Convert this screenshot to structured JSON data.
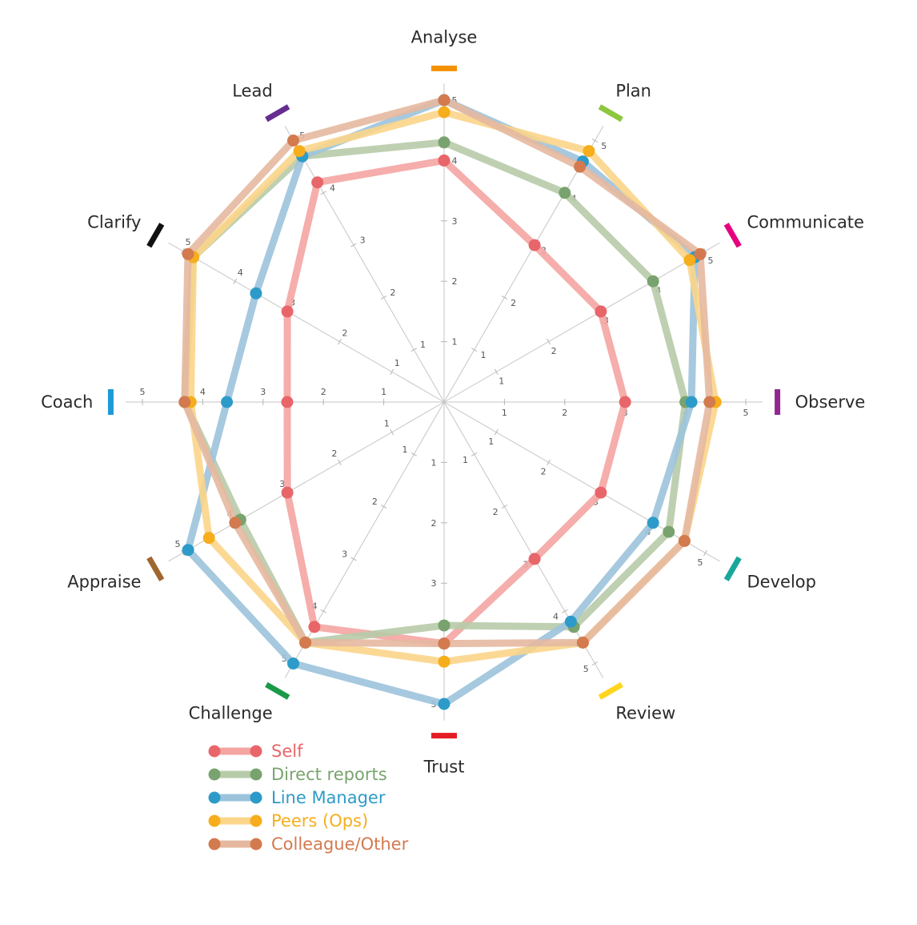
{
  "chart_data": {
    "type": "radar",
    "title": "",
    "axes": [
      {
        "name": "Analyse",
        "color": "#f39200"
      },
      {
        "name": "Plan",
        "color": "#8dc63f"
      },
      {
        "name": "Communicate",
        "color": "#e6007e"
      },
      {
        "name": "Observe",
        "color": "#92278f"
      },
      {
        "name": "Develop",
        "color": "#1aa79b"
      },
      {
        "name": "Review",
        "color": "#ffd51e"
      },
      {
        "name": "Trust",
        "color": "#e41e26"
      },
      {
        "name": "Challenge",
        "color": "#1b9a48"
      },
      {
        "name": "Appraise",
        "color": "#a0672e"
      },
      {
        "name": "Coach",
        "color": "#1c9ad6"
      },
      {
        "name": "Clarify",
        "color": "#111111"
      },
      {
        "name": "Lead",
        "color": "#662d91"
      }
    ],
    "range": [
      0,
      5
    ],
    "ticks": [
      1,
      2,
      3,
      4,
      5
    ],
    "series": [
      {
        "name": "Self",
        "color": "#e8666a",
        "line_color": "#f4a5a2",
        "values": [
          4.0,
          3.0,
          3.0,
          3.0,
          3.0,
          3.0,
          4.0,
          4.3,
          3.0,
          2.6,
          3.0,
          4.2
        ]
      },
      {
        "name": "Direct reports",
        "color": "#79a36e",
        "line_color": "#b7cba8",
        "values": [
          4.3,
          4.0,
          4.0,
          4.0,
          4.3,
          4.3,
          3.7,
          4.6,
          3.9,
          4.3,
          4.8,
          4.7
        ]
      },
      {
        "name": "Line Manager",
        "color": "#2d9bc9",
        "line_color": "#9cc3dc",
        "values": [
          5.0,
          4.6,
          4.8,
          4.1,
          4.0,
          4.2,
          5.0,
          5.0,
          4.9,
          3.6,
          3.6,
          4.7
        ]
      },
      {
        "name": "Peers (Ops)",
        "color": "#f6ae1c",
        "line_color": "#fbd58a",
        "values": [
          4.8,
          4.8,
          4.7,
          4.5,
          4.6,
          4.6,
          4.3,
          4.6,
          4.5,
          4.2,
          4.8,
          4.8
        ]
      },
      {
        "name": "Colleague/Other",
        "color": "#d37a4f",
        "line_color": "#e6b8a0",
        "values": [
          5.0,
          4.5,
          4.9,
          4.4,
          4.6,
          4.6,
          4.0,
          4.6,
          4.0,
          4.3,
          4.9,
          5.0
        ]
      }
    ],
    "legend": {
      "position": "bottom-left"
    }
  }
}
